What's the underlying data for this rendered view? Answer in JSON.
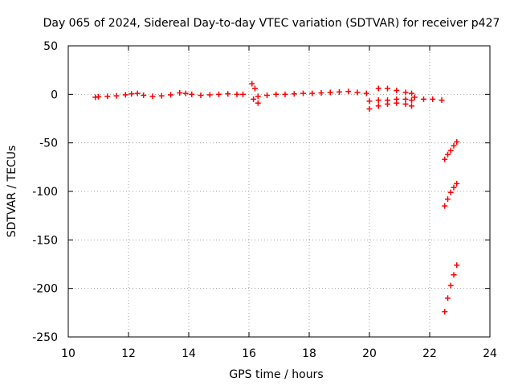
{
  "chart_data": {
    "type": "scatter",
    "title": "Day 065 of 2024, Sidereal Day-to-day VTEC variation (SDTVAR) for receiver p427",
    "xlabel": "GPS time / hours",
    "ylabel": "SDTVAR / TECUs",
    "xlim": [
      10,
      24
    ],
    "ylim": [
      -250,
      50
    ],
    "x_ticks": [
      "10",
      "12",
      "14",
      "16",
      "18",
      "20",
      "22",
      "24"
    ],
    "y_ticks": [
      "50",
      "0",
      "-50",
      "-100",
      "-150",
      "-200",
      "-250"
    ],
    "grid": true,
    "marker": "plus",
    "color": "#ff0000",
    "series": [
      {
        "name": "SDTVAR",
        "segments": [
          {
            "x": [
              10.9,
              11.0,
              11.3,
              11.6,
              11.9,
              12.1,
              12.3
            ],
            "y": [
              -3,
              -2.5,
              -2,
              -1.5,
              -0.5,
              0.5,
              1
            ]
          },
          {
            "x": [
              12.5,
              12.8,
              13.1,
              13.4,
              13.7,
              13.9,
              14.1
            ],
            "y": [
              -1,
              -2,
              -1.5,
              -0.5,
              1.5,
              1,
              0
            ]
          },
          {
            "x": [
              14.4,
              14.7,
              15.0,
              15.3,
              15.6,
              15.8
            ],
            "y": [
              -1,
              -0.5,
              0,
              0.5,
              0,
              0
            ]
          },
          {
            "x": [
              16.1,
              16.15,
              16.2,
              16.3
            ],
            "y": [
              11,
              -5,
              6,
              -9
            ]
          },
          {
            "x": [
              16.3,
              16.6,
              16.9,
              17.2,
              17.5,
              17.8,
              18.1,
              18.4,
              18.7,
              19.0,
              19.3,
              19.6,
              19.9
            ],
            "y": [
              -2,
              -1,
              0,
              0,
              0.5,
              1,
              1,
              1.5,
              2,
              2.5,
              3,
              2,
              1
            ]
          },
          {
            "x": [
              20.0,
              20.3,
              20.6,
              20.9,
              21.2,
              21.4
            ],
            "y": [
              -15,
              -12,
              -10,
              -9,
              -10,
              -12
            ]
          },
          {
            "x": [
              20.0,
              20.3,
              20.6,
              20.9,
              21.2,
              21.4
            ],
            "y": [
              -7,
              -6,
              -6,
              -5,
              -5,
              -6
            ]
          },
          {
            "x": [
              20.3,
              20.6,
              20.9,
              21.2,
              21.4
            ],
            "y": [
              6,
              6,
              4,
              2,
              1
            ]
          },
          {
            "x": [
              21.5,
              21.8,
              22.1,
              22.4
            ],
            "y": [
              -3,
              -5,
              -5,
              -6
            ]
          },
          {
            "x": [
              22.5,
              22.6,
              22.7,
              22.8,
              22.9
            ],
            "y": [
              -67,
              -62,
              -58,
              -53,
              -49
            ]
          },
          {
            "x": [
              22.5,
              22.6,
              22.7,
              22.8,
              22.9
            ],
            "y": [
              -115,
              -108,
              -101,
              -96,
              -92
            ]
          },
          {
            "x": [
              22.5,
              22.6,
              22.7,
              22.8,
              22.9
            ],
            "y": [
              -224,
              -210,
              -197,
              -186,
              -176
            ]
          }
        ]
      }
    ]
  }
}
